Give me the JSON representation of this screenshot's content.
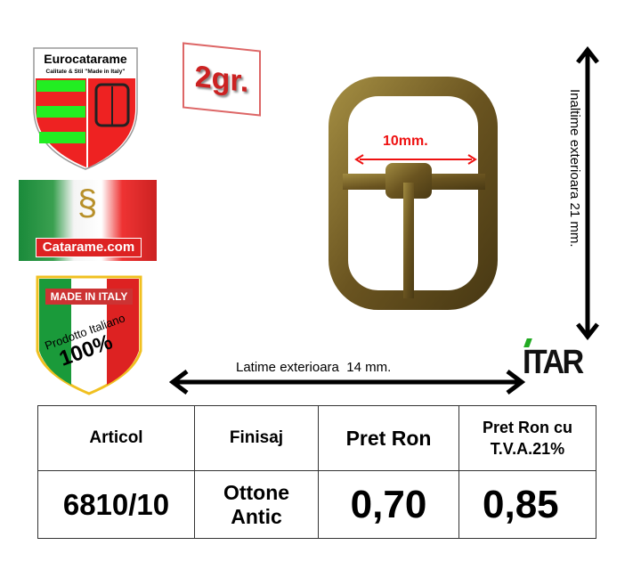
{
  "logos": {
    "eurocatarame": {
      "title": "Eurocatarame",
      "subtitle": "Calitate & Stil \"Made in Italy\""
    },
    "catarame": {
      "label": "Catarame.com"
    },
    "made_in_italy": {
      "top": "MADE IN ITALY",
      "middle": "Prodotto Italiano",
      "bottom": "100%"
    },
    "itar": {
      "label": "ITAR"
    }
  },
  "weight_badge": "2gr.",
  "dimensions": {
    "inner_width": "10mm.",
    "outer_width": "Latime exterioara  14 mm.",
    "outer_height": "Inaltime exterioara 21  mm."
  },
  "colors": {
    "accent_red": "#d22b2b",
    "green": "#22cc22",
    "bronze": "#7a6428"
  },
  "table": {
    "headers": [
      "Articol",
      "Finisaj",
      "Pret Ron",
      "Pret Ron cu T.V.A.21%"
    ],
    "row": [
      "6810/10",
      "Ottone Antic",
      "0,70",
      "0,85"
    ]
  }
}
